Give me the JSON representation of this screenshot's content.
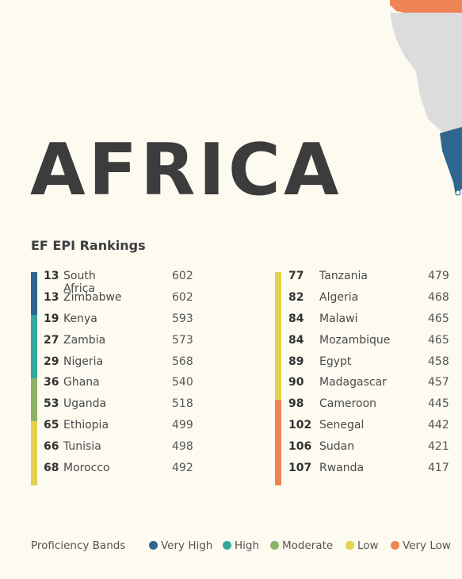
{
  "title": "AFRICA",
  "subtitle": "EF EPI Rankings",
  "colors": {
    "very_high": "#2f6690",
    "high": "#33a89a",
    "moderate": "#8db36a",
    "low": "#e3d24e",
    "very_low": "#ef8455",
    "map_gray": "#dcdcdc",
    "text": "#3c3c3c"
  },
  "left_rankings": [
    {
      "rank": "13",
      "country": "South Africa",
      "score": "602",
      "band": "very_high"
    },
    {
      "rank": "13",
      "country": "Zimbabwe",
      "score": "602",
      "band": "very_high"
    },
    {
      "rank": "19",
      "country": "Kenya",
      "score": "593",
      "band": "high"
    },
    {
      "rank": "27",
      "country": "Zambia",
      "score": "573",
      "band": "high"
    },
    {
      "rank": "29",
      "country": "Nigeria",
      "score": "568",
      "band": "high"
    },
    {
      "rank": "36",
      "country": "Ghana",
      "score": "540",
      "band": "moderate"
    },
    {
      "rank": "53",
      "country": "Uganda",
      "score": "518",
      "band": "moderate"
    },
    {
      "rank": "65",
      "country": "Ethiopia",
      "score": "499",
      "band": "low"
    },
    {
      "rank": "66",
      "country": "Tunisia",
      "score": "498",
      "band": "low"
    },
    {
      "rank": "68",
      "country": "Morocco",
      "score": "492",
      "band": "low"
    }
  ],
  "right_rankings": [
    {
      "rank": "77",
      "country": "Tanzania",
      "score": "479",
      "band": "low"
    },
    {
      "rank": "82",
      "country": "Algeria",
      "score": "468",
      "band": "low"
    },
    {
      "rank": "84",
      "country": "Malawi",
      "score": "465",
      "band": "low"
    },
    {
      "rank": "84",
      "country": "Mozambique",
      "score": "465",
      "band": "low"
    },
    {
      "rank": "89",
      "country": "Egypt",
      "score": "458",
      "band": "low"
    },
    {
      "rank": "90",
      "country": "Madagascar",
      "score": "457",
      "band": "low"
    },
    {
      "rank": "98",
      "country": "Cameroon",
      "score": "445",
      "band": "very_low"
    },
    {
      "rank": "102",
      "country": "Senegal",
      "score": "442",
      "band": "very_low"
    },
    {
      "rank": "106",
      "country": "Sudan",
      "score": "421",
      "band": "very_low"
    },
    {
      "rank": "107",
      "country": "Rwanda",
      "score": "417",
      "band": "very_low"
    }
  ],
  "legend": {
    "title": "Proficiency Bands",
    "items": [
      {
        "label": "Very High",
        "band": "very_high"
      },
      {
        "label": "High",
        "band": "high"
      },
      {
        "label": "Moderate",
        "band": "moderate"
      },
      {
        "label": "Low",
        "band": "low"
      },
      {
        "label": "Very Low",
        "band": "very_low"
      }
    ]
  }
}
